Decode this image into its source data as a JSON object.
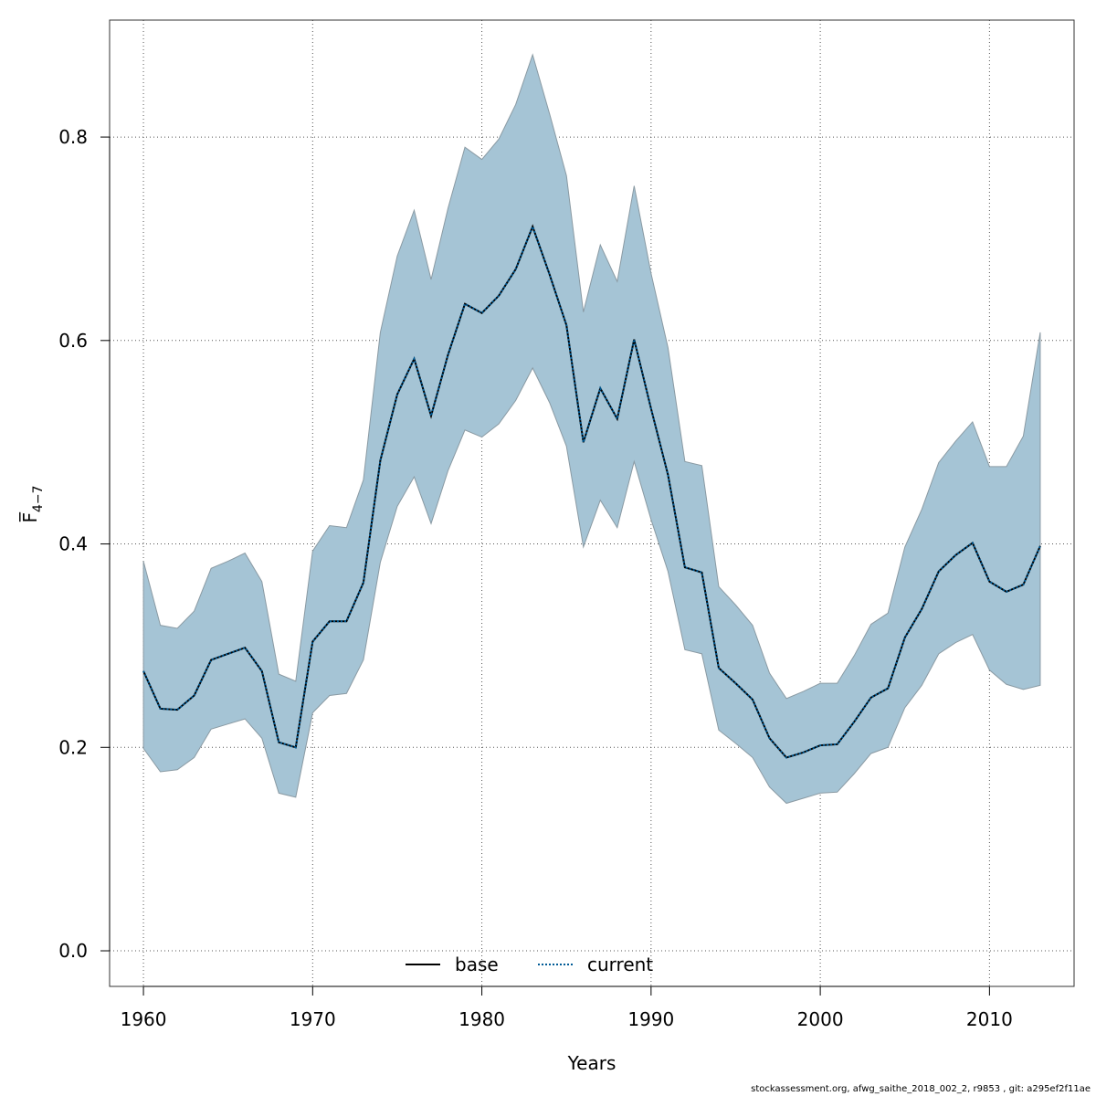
{
  "chart_data": {
    "type": "area",
    "xlabel": "Years",
    "ylabel": "F̅",
    "ylabel_subscript": "4−7",
    "xlim": [
      1958,
      2015
    ],
    "ylim": [
      -0.035,
      0.915
    ],
    "x_ticks": [
      1960,
      1970,
      1980,
      1990,
      2000,
      2010
    ],
    "y_ticks": [
      0.0,
      0.2,
      0.4,
      0.6,
      0.8
    ],
    "y_tick_labels": [
      "0.0",
      "0.2",
      "0.4",
      "0.6",
      "0.8"
    ],
    "grid": true,
    "legend_position": "bottom-center",
    "x": [
      1960,
      1961,
      1962,
      1963,
      1964,
      1965,
      1966,
      1967,
      1968,
      1969,
      1970,
      1971,
      1972,
      1973,
      1974,
      1975,
      1976,
      1977,
      1978,
      1979,
      1980,
      1981,
      1982,
      1983,
      1984,
      1985,
      1986,
      1987,
      1988,
      1989,
      1990,
      1991,
      1992,
      1993,
      1994,
      1995,
      1996,
      1997,
      1998,
      1999,
      2000,
      2001,
      2002,
      2003,
      2004,
      2005,
      2006,
      2007,
      2008,
      2009,
      2010,
      2011,
      2012,
      2013
    ],
    "band_upper": [
      0.383,
      0.32,
      0.317,
      0.334,
      0.376,
      0.383,
      0.391,
      0.363,
      0.272,
      0.265,
      0.393,
      0.418,
      0.416,
      0.463,
      0.608,
      0.683,
      0.728,
      0.66,
      0.73,
      0.79,
      0.778,
      0.798,
      0.832,
      0.881,
      0.823,
      0.762,
      0.628,
      0.694,
      0.658,
      0.752,
      0.666,
      0.593,
      0.481,
      0.477,
      0.358,
      0.34,
      0.32,
      0.273,
      0.248,
      0.255,
      0.263,
      0.263,
      0.29,
      0.321,
      0.332,
      0.397,
      0.434,
      0.48,
      0.501,
      0.52,
      0.476,
      0.476,
      0.506,
      0.608
    ],
    "band_lower": [
      0.199,
      0.176,
      0.178,
      0.19,
      0.218,
      0.223,
      0.228,
      0.209,
      0.155,
      0.151,
      0.234,
      0.251,
      0.253,
      0.286,
      0.382,
      0.437,
      0.466,
      0.42,
      0.472,
      0.512,
      0.505,
      0.518,
      0.541,
      0.573,
      0.539,
      0.496,
      0.397,
      0.443,
      0.416,
      0.481,
      0.424,
      0.373,
      0.296,
      0.292,
      0.217,
      0.204,
      0.19,
      0.161,
      0.145,
      0.15,
      0.155,
      0.156,
      0.174,
      0.194,
      0.2,
      0.239,
      0.261,
      0.292,
      0.303,
      0.311,
      0.276,
      0.262,
      0.257,
      0.261
    ],
    "series": [
      {
        "name": "base",
        "color": "#000000",
        "dash": "solid",
        "values": [
          0.275,
          0.238,
          0.237,
          0.251,
          0.286,
          0.292,
          0.298,
          0.275,
          0.205,
          0.2,
          0.304,
          0.324,
          0.324,
          0.362,
          0.482,
          0.547,
          0.582,
          0.526,
          0.586,
          0.636,
          0.627,
          0.644,
          0.67,
          0.712,
          0.665,
          0.615,
          0.5,
          0.553,
          0.523,
          0.601,
          0.533,
          0.468,
          0.377,
          0.372,
          0.278,
          0.263,
          0.247,
          0.209,
          0.19,
          0.195,
          0.202,
          0.203,
          0.225,
          0.249,
          0.258,
          0.308,
          0.336,
          0.373,
          0.389,
          0.401,
          0.363,
          0.353,
          0.36,
          0.398
        ]
      },
      {
        "name": "current",
        "color": "#005b96",
        "dash": "dotted",
        "values": [
          0.275,
          0.238,
          0.237,
          0.251,
          0.286,
          0.292,
          0.298,
          0.275,
          0.205,
          0.2,
          0.304,
          0.324,
          0.324,
          0.362,
          0.482,
          0.547,
          0.582,
          0.526,
          0.586,
          0.636,
          0.627,
          0.644,
          0.67,
          0.712,
          0.665,
          0.615,
          0.5,
          0.553,
          0.523,
          0.601,
          0.533,
          0.468,
          0.377,
          0.372,
          0.278,
          0.263,
          0.247,
          0.209,
          0.19,
          0.195,
          0.202,
          0.203,
          0.225,
          0.249,
          0.258,
          0.308,
          0.336,
          0.373,
          0.389,
          0.401,
          0.363,
          0.353,
          0.36,
          0.398
        ]
      }
    ],
    "band_color": "#a5c4d5",
    "band_stroke": "#8a9aa3"
  },
  "footer_text": "stockassessment.org, afwg_saithe_2018_002_2, r9853 , git: a295ef2f11ae"
}
